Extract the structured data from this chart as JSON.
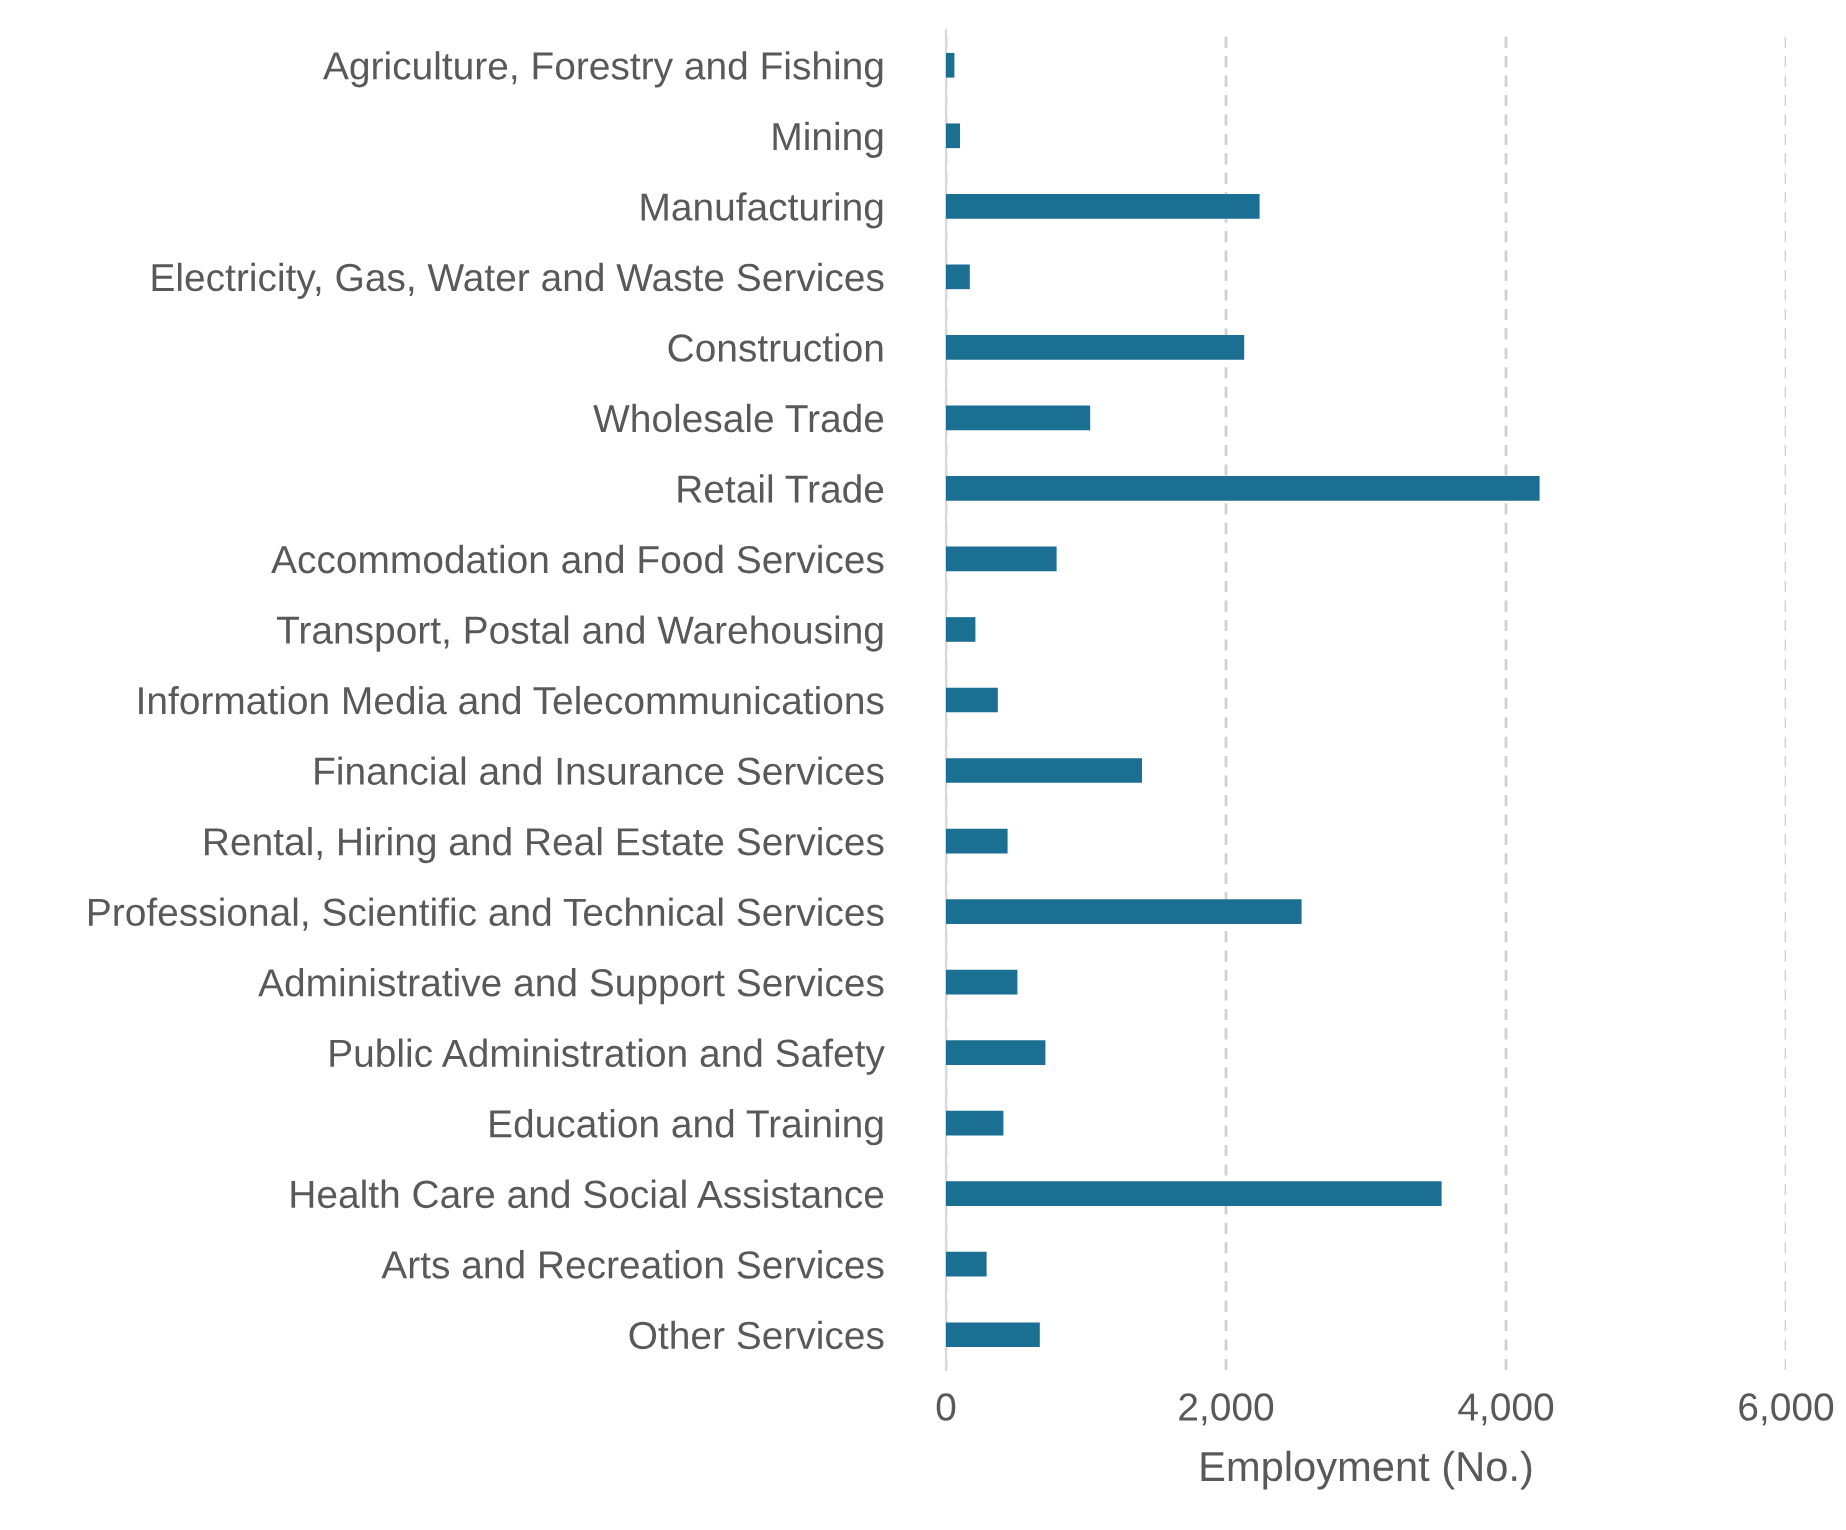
{
  "chart_data": {
    "type": "bar",
    "orientation": "horizontal",
    "xlabel": "Employment (No.)",
    "categories": [
      "Agriculture, Forestry and Fishing",
      "Mining",
      "Manufacturing",
      "Electricity, Gas, Water and Waste Services",
      "Construction",
      "Wholesale Trade",
      "Retail Trade",
      "Accommodation and Food Services",
      "Transport, Postal and Warehousing",
      "Information Media and Telecommunications",
      "Financial and Insurance Services",
      "Rental, Hiring and Real Estate Services",
      "Professional, Scientific and Technical Services",
      "Administrative and Support Services",
      "Public Administration and Safety",
      "Education and Training",
      "Health Care and Social Assistance",
      "Arts and Recreation Services",
      "Other Services"
    ],
    "values": [
      60,
      100,
      2240,
      170,
      2130,
      1030,
      4240,
      790,
      210,
      370,
      1400,
      440,
      2540,
      510,
      710,
      410,
      3540,
      290,
      670
    ],
    "color": "#1b6f93",
    "xlim": [
      0,
      6000
    ],
    "xticks": [
      0,
      {
        "value": 2000,
        "label": "2,000"
      },
      {
        "value": 4000,
        "label": "4,000"
      },
      {
        "value": 6000,
        "label": "6,000"
      }
    ],
    "grid": "x",
    "legend": false
  }
}
